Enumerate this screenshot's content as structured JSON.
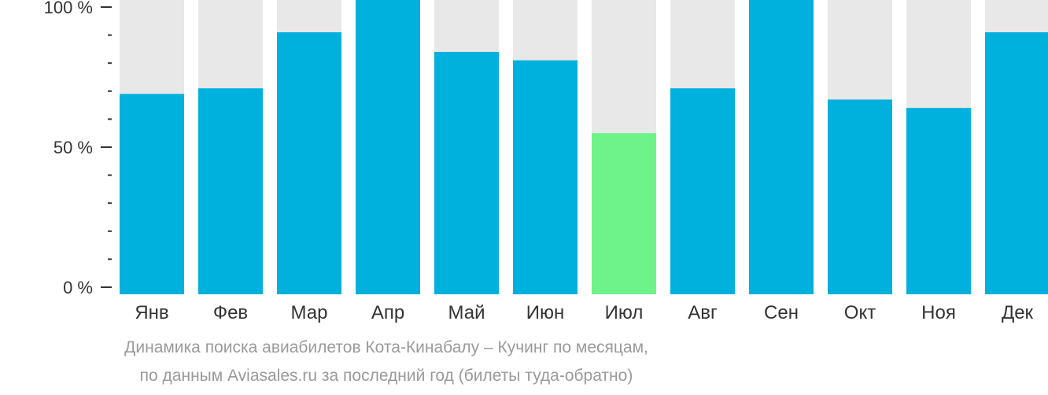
{
  "chart_data": {
    "type": "bar",
    "categories": [
      "Янв",
      "Фев",
      "Мар",
      "Апр",
      "Май",
      "Июн",
      "Июл",
      "Авг",
      "Сен",
      "Окт",
      "Ноя",
      "Дек"
    ],
    "values": [
      69,
      71,
      91,
      100,
      84,
      81,
      55,
      71,
      100,
      67,
      64,
      91
    ],
    "highlight_index": 6,
    "ylim": [
      0,
      100
    ],
    "yticks": [
      {
        "value": 0,
        "label": "0 %"
      },
      {
        "value": 50,
        "label": "50 %"
      },
      {
        "value": 100,
        "label": "100 %"
      }
    ],
    "minor_tick_step": 10,
    "colors": {
      "bar": "#00b0dd",
      "highlight": "#6ef28a",
      "background_bar": "#e8e8e8",
      "axis": "#333333"
    }
  },
  "caption": {
    "line1": "Динамика поиска авиабилетов Кота-Кинабалу – Кучинг по месяцам,",
    "line2": "по данным Aviasales.ru за последний год (билеты туда-обратно)"
  }
}
